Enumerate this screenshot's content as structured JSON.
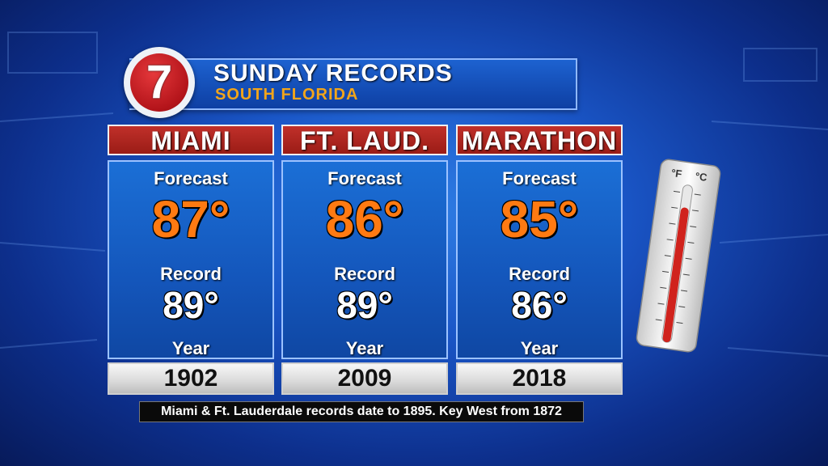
{
  "header": {
    "title": "SUNDAY RECORDS",
    "subtitle": "SOUTH FLORIDA",
    "logo_text": "7"
  },
  "labels": {
    "forecast": "Forecast",
    "record": "Record",
    "year": "Year"
  },
  "cities": [
    {
      "name": "MIAMI",
      "forecast": "87°",
      "record": "89°",
      "year": "1902"
    },
    {
      "name": "FT. LAUD.",
      "forecast": "86°",
      "record": "89°",
      "year": "2009"
    },
    {
      "name": "MARATHON",
      "forecast": "85°",
      "record": "86°",
      "year": "2018"
    }
  ],
  "footnote": "Miami & Ft. Lauderdale records date to 1895. Key West from 1872",
  "thermometer": {
    "unit_f": "°F",
    "unit_c": "°C",
    "icon": "thermometer-icon"
  },
  "colors": {
    "forecast_orange": "#ff7a12",
    "header_red": "#b0241d",
    "accent_gold": "#f2a51a"
  }
}
